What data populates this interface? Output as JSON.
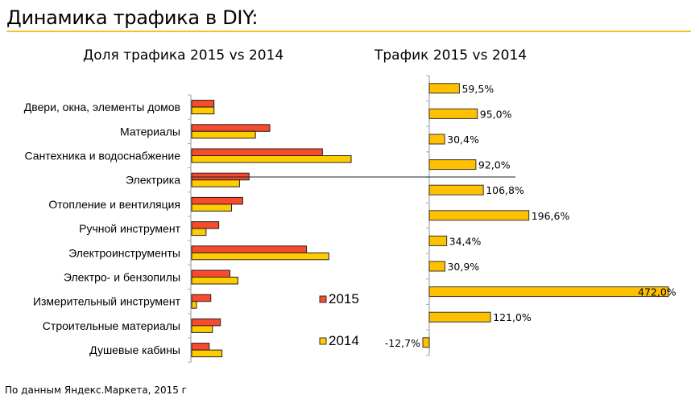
{
  "header": {
    "title": "Динамика трафика в DIY:",
    "accent_color": "#f2c12e"
  },
  "footnote": "По данным Яндекс.Маркета, 2015 г",
  "chart_data": [
    {
      "type": "bar",
      "orientation": "horizontal",
      "title": "Доля трафика 2015 vs 2014",
      "xlabel": "",
      "ylabel": "",
      "categories": [
        "Двери, окна, элементы домов",
        "Материалы",
        "Сантехника и водоснабжение",
        "Электрика",
        "Отопление и вентиляция",
        "Ручной инструмент",
        "Электроинструменты",
        "Электро- и бензопилы",
        "Измерительный инструмент",
        "Строительные материалы",
        "Душевые кабины"
      ],
      "series": [
        {
          "name": "2015",
          "color": "#f84a2c",
          "values": [
            14,
            49,
            82,
            36,
            32,
            17,
            72,
            24,
            12,
            18,
            11
          ]
        },
        {
          "name": "2014",
          "color": "#ffcc00",
          "values": [
            14,
            40,
            100,
            30,
            25,
            9,
            86,
            29,
            3,
            13,
            19
          ]
        }
      ],
      "value_note": "relative scale estimated from bar lengths (no axis ticks shown)",
      "xlim": [
        0,
        100
      ],
      "grid": false,
      "legend": {
        "position": "bottom-right",
        "entries": [
          "2015",
          "2014"
        ]
      }
    },
    {
      "type": "bar",
      "orientation": "horizontal",
      "title": "Трафик 2015 vs 2014",
      "xlabel": "",
      "ylabel": "",
      "categories": [
        "Двери, окна, элементы домов",
        "Материалы",
        "Сантехника и водоснабжение",
        "Электрика",
        "Отопление и вентиляция",
        "Ручной инструмент",
        "Электроинструменты",
        "Электро- и бензопилы",
        "Измерительный инструмент",
        "Строительные материалы",
        "Душевые кабины"
      ],
      "series": [
        {
          "name": "Трафик 2015 vs 2014",
          "color": "#ffc000",
          "values": [
            59.5,
            95.0,
            30.4,
            92.0,
            106.8,
            196.6,
            34.4,
            30.9,
            472.0,
            121.0,
            -12.7
          ],
          "labels": [
            "59,5%",
            "95,0%",
            "30,4%",
            "92,0%",
            "106,8%",
            "196,6%",
            "34,4%",
            "30,9%",
            "472,0%",
            "121,0%",
            "-12,7%"
          ]
        }
      ],
      "xlim": [
        -15,
        475
      ],
      "grid": false,
      "legend": null
    }
  ]
}
